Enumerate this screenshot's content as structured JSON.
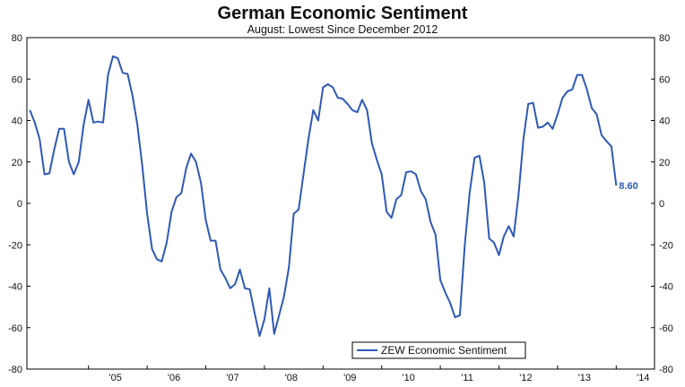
{
  "chart_data": {
    "type": "line",
    "title": "German Economic Sentiment",
    "subtitle": "August: Lowest Since December 2012",
    "xlabel": "",
    "ylabel": "",
    "ylim": [
      -80,
      80
    ],
    "yticks": [
      80,
      60,
      40,
      20,
      0,
      -20,
      -40,
      -60,
      -80
    ],
    "xticks": [
      "'05",
      "'06",
      "'07",
      "'08",
      "'09",
      "'10",
      "'11",
      "'12",
      "'13",
      "'14"
    ],
    "grid": false,
    "legend_position": "bottom-right",
    "end_label": "8.60",
    "series": [
      {
        "name": "ZEW Economic Sentiment",
        "color": "#2e59b5",
        "points": [
          [
            "2004-01",
            45.0
          ],
          [
            "2004-02",
            39.0
          ],
          [
            "2004-03",
            31.0
          ],
          [
            "2004-04",
            14.0
          ],
          [
            "2004-05",
            14.5
          ],
          [
            "2004-06",
            26.0
          ],
          [
            "2004-07",
            36.0
          ],
          [
            "2004-08",
            36.0
          ],
          [
            "2004-09",
            20.0
          ],
          [
            "2004-10",
            14.0
          ],
          [
            "2004-11",
            20.0
          ],
          [
            "2004-12",
            38.0
          ],
          [
            "2005-01",
            50.0
          ],
          [
            "2005-02",
            39.0
          ],
          [
            "2005-03",
            39.5
          ],
          [
            "2005-04",
            39.0
          ],
          [
            "2005-05",
            62.0
          ],
          [
            "2005-06",
            71.0
          ],
          [
            "2005-07",
            70.0
          ],
          [
            "2005-08",
            63.0
          ],
          [
            "2005-09",
            62.5
          ],
          [
            "2005-10",
            52.0
          ],
          [
            "2005-11",
            38.0
          ],
          [
            "2005-12",
            18.0
          ],
          [
            "2006-01",
            -5.0
          ],
          [
            "2006-02",
            -22.0
          ],
          [
            "2006-03",
            -27.0
          ],
          [
            "2006-04",
            -28.0
          ],
          [
            "2006-05",
            -19.0
          ],
          [
            "2006-06",
            -4.0
          ],
          [
            "2006-07",
            3.0
          ],
          [
            "2006-08",
            5.0
          ],
          [
            "2006-09",
            17.0
          ],
          [
            "2006-10",
            24.0
          ],
          [
            "2006-11",
            20.0
          ],
          [
            "2006-12",
            10.0
          ],
          [
            "2007-01",
            -8.0
          ],
          [
            "2007-02",
            -18.0
          ],
          [
            "2007-03",
            -18.0
          ],
          [
            "2007-04",
            -32.0
          ],
          [
            "2007-05",
            -36.0
          ],
          [
            "2007-06",
            -41.0
          ],
          [
            "2007-07",
            -39.0
          ],
          [
            "2007-08",
            -32.0
          ],
          [
            "2007-09",
            -41.0
          ],
          [
            "2007-10",
            -41.5
          ],
          [
            "2007-11",
            -53.0
          ],
          [
            "2007-12",
            -64.0
          ],
          [
            "2008-01",
            -56.0
          ],
          [
            "2008-02",
            -41.0
          ],
          [
            "2008-03",
            -63.0
          ],
          [
            "2008-04",
            -54.0
          ],
          [
            "2008-05",
            -45.0
          ],
          [
            "2008-06",
            -31.0
          ],
          [
            "2008-07",
            -5.0
          ],
          [
            "2008-08",
            -3.0
          ],
          [
            "2008-09",
            14.0
          ],
          [
            "2008-10",
            31.0
          ],
          [
            "2008-11",
            45.0
          ],
          [
            "2008-12",
            40.0
          ],
          [
            "2009-01",
            56.0
          ],
          [
            "2009-02",
            57.5
          ],
          [
            "2009-03",
            56.0
          ],
          [
            "2009-04",
            51.0
          ],
          [
            "2009-05",
            50.5
          ],
          [
            "2009-06",
            48.0
          ],
          [
            "2009-07",
            45.0
          ],
          [
            "2009-08",
            44.0
          ],
          [
            "2009-09",
            50.0
          ],
          [
            "2009-10",
            45.0
          ],
          [
            "2009-11",
            29.0
          ],
          [
            "2009-12",
            21.0
          ],
          [
            "2010-01",
            14.0
          ],
          [
            "2010-02",
            -4.0
          ],
          [
            "2010-03",
            -7.0
          ],
          [
            "2010-04",
            2.0
          ],
          [
            "2010-05",
            4.0
          ],
          [
            "2010-06",
            15.0
          ],
          [
            "2010-07",
            15.5
          ],
          [
            "2010-08",
            14.0
          ],
          [
            "2010-09",
            6.0
          ],
          [
            "2010-10",
            2.0
          ],
          [
            "2010-11",
            -9.0
          ],
          [
            "2010-12",
            -15.0
          ],
          [
            "2011-01",
            -37.0
          ],
          [
            "2011-02",
            -43.0
          ],
          [
            "2011-03",
            -48.0
          ],
          [
            "2011-04",
            -55.0
          ],
          [
            "2011-05",
            -54.0
          ],
          [
            "2011-06",
            -20.0
          ],
          [
            "2011-07",
            5.0
          ],
          [
            "2011-08",
            22.0
          ],
          [
            "2011-09",
            23.0
          ],
          [
            "2011-10",
            10.0
          ],
          [
            "2011-11",
            -17.0
          ],
          [
            "2011-12",
            -19.0
          ],
          [
            "2012-01",
            -25.0
          ],
          [
            "2012-02",
            -16.0
          ],
          [
            "2012-03",
            -11.0
          ],
          [
            "2012-04",
            -16.0
          ],
          [
            "2012-05",
            4.0
          ],
          [
            "2012-06",
            31.0
          ],
          [
            "2012-07",
            48.0
          ],
          [
            "2012-08",
            48.5
          ],
          [
            "2012-09",
            36.5
          ],
          [
            "2012-10",
            37.0
          ],
          [
            "2012-11",
            39.0
          ],
          [
            "2012-12",
            36.0
          ],
          [
            "2013-01",
            43.0
          ],
          [
            "2013-02",
            51.0
          ],
          [
            "2013-03",
            54.0
          ],
          [
            "2013-04",
            55.0
          ],
          [
            "2013-05",
            62.0
          ],
          [
            "2013-06",
            62.0
          ],
          [
            "2013-07",
            55.0
          ],
          [
            "2013-08",
            46.0
          ],
          [
            "2013-09",
            43.0
          ],
          [
            "2013-10",
            33.0
          ],
          [
            "2013-11",
            30.0
          ],
          [
            "2013-12",
            27.5
          ],
          [
            "2014-01",
            8.6
          ]
        ]
      }
    ]
  }
}
